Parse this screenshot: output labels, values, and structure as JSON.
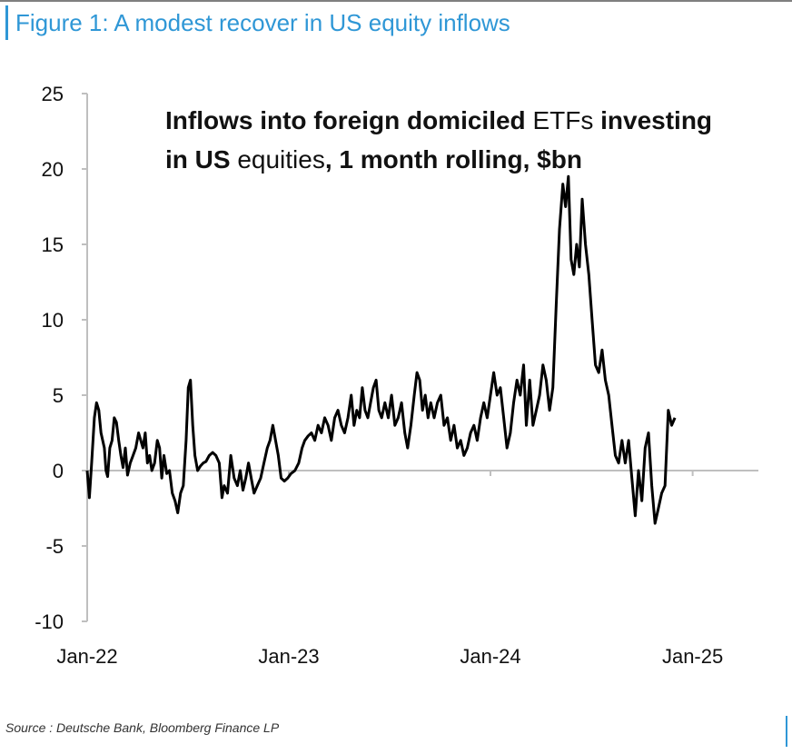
{
  "figure": {
    "title": "Figure 1: A modest recover in US equity inflows",
    "source": "Source : Deutsche Bank, Bloomberg Finance LP",
    "accent_color": "#2f97d6"
  },
  "chart_data": {
    "type": "line",
    "title": "",
    "annotation": {
      "line1": [
        {
          "text": "Inflows into foreign domiciled ",
          "bold": true
        },
        {
          "text": "ETFs",
          "bold": false
        },
        {
          "text": " investing",
          "bold": true
        }
      ],
      "line2": [
        {
          "text": "in US ",
          "bold": true
        },
        {
          "text": "equities",
          "bold": false
        },
        {
          "text": ",  1 month rolling, $bn",
          "bold": true
        }
      ]
    },
    "xlabel": "",
    "ylabel": "",
    "x_range": [
      "2022-01-01",
      "2025-04-15"
    ],
    "x_ticks": [
      {
        "date": "2022-01-01",
        "label": "Jan-22"
      },
      {
        "date": "2023-01-01",
        "label": "Jan-23"
      },
      {
        "date": "2024-01-01",
        "label": "Jan-24"
      },
      {
        "date": "2025-01-01",
        "label": "Jan-25"
      }
    ],
    "ylim": [
      -10,
      25
    ],
    "y_ticks": [
      25,
      20,
      15,
      10,
      5,
      0,
      -5,
      -10
    ],
    "grid": false,
    "legend": "none",
    "series": [
      {
        "name": "",
        "color": "#000000",
        "points": [
          [
            "2022-01-01",
            0.0
          ],
          [
            "2022-01-05",
            -1.8
          ],
          [
            "2022-01-09",
            0.5
          ],
          [
            "2022-01-14",
            3.5
          ],
          [
            "2022-01-18",
            4.5
          ],
          [
            "2022-01-22",
            4.0
          ],
          [
            "2022-01-26",
            2.5
          ],
          [
            "2022-02-01",
            1.5
          ],
          [
            "2022-02-04",
            0.0
          ],
          [
            "2022-02-07",
            -0.4
          ],
          [
            "2022-02-11",
            1.5
          ],
          [
            "2022-02-15",
            2.0
          ],
          [
            "2022-02-19",
            3.5
          ],
          [
            "2022-02-23",
            3.2
          ],
          [
            "2022-02-27",
            2.0
          ],
          [
            "2022-03-03",
            1.0
          ],
          [
            "2022-03-07",
            0.2
          ],
          [
            "2022-03-11",
            1.5
          ],
          [
            "2022-03-15",
            -0.3
          ],
          [
            "2022-03-20",
            0.5
          ],
          [
            "2022-03-25",
            1.0
          ],
          [
            "2022-03-30",
            1.5
          ],
          [
            "2022-04-04",
            2.5
          ],
          [
            "2022-04-08",
            2.0
          ],
          [
            "2022-04-12",
            1.5
          ],
          [
            "2022-04-16",
            2.5
          ],
          [
            "2022-04-20",
            0.5
          ],
          [
            "2022-04-24",
            1.0
          ],
          [
            "2022-04-28",
            0.0
          ],
          [
            "2022-05-03",
            0.5
          ],
          [
            "2022-05-08",
            2.0
          ],
          [
            "2022-05-12",
            1.5
          ],
          [
            "2022-05-16",
            -0.5
          ],
          [
            "2022-05-20",
            1.0
          ],
          [
            "2022-05-25",
            -0.2
          ],
          [
            "2022-05-30",
            0.0
          ],
          [
            "2022-06-04",
            -1.5
          ],
          [
            "2022-06-09",
            -2.0
          ],
          [
            "2022-06-14",
            -2.8
          ],
          [
            "2022-06-19",
            -1.5
          ],
          [
            "2022-06-24",
            -1.0
          ],
          [
            "2022-06-29",
            2.0
          ],
          [
            "2022-07-03",
            5.5
          ],
          [
            "2022-07-07",
            6.0
          ],
          [
            "2022-07-11",
            3.0
          ],
          [
            "2022-07-15",
            1.0
          ],
          [
            "2022-07-20",
            0.0
          ],
          [
            "2022-07-25",
            0.3
          ],
          [
            "2022-07-30",
            0.5
          ],
          [
            "2022-08-04",
            0.6
          ],
          [
            "2022-08-10",
            1.0
          ],
          [
            "2022-08-16",
            1.2
          ],
          [
            "2022-08-22",
            1.0
          ],
          [
            "2022-08-28",
            0.5
          ],
          [
            "2022-09-02",
            -1.8
          ],
          [
            "2022-09-06",
            -1.0
          ],
          [
            "2022-09-12",
            -1.5
          ],
          [
            "2022-09-18",
            1.0
          ],
          [
            "2022-09-24",
            -0.5
          ],
          [
            "2022-09-30",
            -1.0
          ],
          [
            "2022-10-05",
            0.0
          ],
          [
            "2022-10-10",
            -1.3
          ],
          [
            "2022-10-15",
            -0.5
          ],
          [
            "2022-10-20",
            0.5
          ],
          [
            "2022-10-25",
            -0.5
          ],
          [
            "2022-10-30",
            -1.5
          ],
          [
            "2022-11-05",
            -1.0
          ],
          [
            "2022-11-11",
            -0.5
          ],
          [
            "2022-11-17",
            0.5
          ],
          [
            "2022-11-23",
            1.5
          ],
          [
            "2022-11-28",
            2.0
          ],
          [
            "2022-12-03",
            3.0
          ],
          [
            "2022-12-08",
            2.0
          ],
          [
            "2022-12-13",
            1.0
          ],
          [
            "2022-12-18",
            -0.5
          ],
          [
            "2022-12-24",
            -0.7
          ],
          [
            "2022-12-30",
            -0.5
          ],
          [
            "2023-01-05",
            -0.2
          ],
          [
            "2023-01-12",
            0.0
          ],
          [
            "2023-01-19",
            0.5
          ],
          [
            "2023-01-25",
            1.5
          ],
          [
            "2023-01-30",
            2.0
          ],
          [
            "2023-02-05",
            2.3
          ],
          [
            "2023-02-11",
            2.5
          ],
          [
            "2023-02-17",
            2.0
          ],
          [
            "2023-02-23",
            3.0
          ],
          [
            "2023-03-01",
            2.5
          ],
          [
            "2023-03-07",
            3.5
          ],
          [
            "2023-03-13",
            3.0
          ],
          [
            "2023-03-19",
            2.0
          ],
          [
            "2023-03-25",
            3.5
          ],
          [
            "2023-03-31",
            4.0
          ],
          [
            "2023-04-06",
            3.0
          ],
          [
            "2023-04-12",
            2.5
          ],
          [
            "2023-04-18",
            3.5
          ],
          [
            "2023-04-24",
            5.0
          ],
          [
            "2023-04-29",
            3.0
          ],
          [
            "2023-05-04",
            4.0
          ],
          [
            "2023-05-09",
            3.5
          ],
          [
            "2023-05-14",
            5.5
          ],
          [
            "2023-05-19",
            4.0
          ],
          [
            "2023-05-24",
            3.5
          ],
          [
            "2023-05-29",
            4.5
          ],
          [
            "2023-06-03",
            5.5
          ],
          [
            "2023-06-08",
            6.0
          ],
          [
            "2023-06-13",
            4.0
          ],
          [
            "2023-06-18",
            3.5
          ],
          [
            "2023-06-24",
            4.5
          ],
          [
            "2023-06-30",
            3.5
          ],
          [
            "2023-07-06",
            5.0
          ],
          [
            "2023-07-12",
            3.0
          ],
          [
            "2023-07-18",
            3.5
          ],
          [
            "2023-07-24",
            4.5
          ],
          [
            "2023-07-30",
            2.5
          ],
          [
            "2023-08-04",
            1.5
          ],
          [
            "2023-08-10",
            3.0
          ],
          [
            "2023-08-16",
            5.0
          ],
          [
            "2023-08-21",
            6.5
          ],
          [
            "2023-08-26",
            6.0
          ],
          [
            "2023-08-31",
            4.0
          ],
          [
            "2023-09-05",
            5.0
          ],
          [
            "2023-09-10",
            3.5
          ],
          [
            "2023-09-15",
            4.5
          ],
          [
            "2023-09-21",
            3.5
          ],
          [
            "2023-09-27",
            4.5
          ],
          [
            "2023-10-03",
            5.0
          ],
          [
            "2023-10-09",
            3.0
          ],
          [
            "2023-10-15",
            3.5
          ],
          [
            "2023-10-21",
            2.0
          ],
          [
            "2023-10-27",
            3.0
          ],
          [
            "2023-11-02",
            1.5
          ],
          [
            "2023-11-08",
            2.0
          ],
          [
            "2023-11-14",
            1.0
          ],
          [
            "2023-11-20",
            1.5
          ],
          [
            "2023-11-26",
            2.5
          ],
          [
            "2023-12-02",
            3.0
          ],
          [
            "2023-12-08",
            2.0
          ],
          [
            "2023-12-14",
            3.5
          ],
          [
            "2023-12-20",
            4.5
          ],
          [
            "2023-12-26",
            3.5
          ],
          [
            "2024-01-01",
            5.0
          ],
          [
            "2024-01-07",
            6.5
          ],
          [
            "2024-01-13",
            5.0
          ],
          [
            "2024-01-19",
            5.5
          ],
          [
            "2024-01-25",
            3.5
          ],
          [
            "2024-01-31",
            1.5
          ],
          [
            "2024-02-06",
            2.5
          ],
          [
            "2024-02-12",
            4.5
          ],
          [
            "2024-02-18",
            6.0
          ],
          [
            "2024-02-24",
            5.0
          ],
          [
            "2024-03-01",
            7.0
          ],
          [
            "2024-03-06",
            3.0
          ],
          [
            "2024-03-12",
            6.0
          ],
          [
            "2024-03-18",
            3.0
          ],
          [
            "2024-03-24",
            4.0
          ],
          [
            "2024-03-30",
            5.0
          ],
          [
            "2024-04-05",
            7.0
          ],
          [
            "2024-04-11",
            6.0
          ],
          [
            "2024-04-17",
            4.0
          ],
          [
            "2024-04-23",
            5.5
          ],
          [
            "2024-04-29",
            11.0
          ],
          [
            "2024-05-05",
            16.0
          ],
          [
            "2024-05-11",
            19.0
          ],
          [
            "2024-05-16",
            17.5
          ],
          [
            "2024-05-21",
            19.5
          ],
          [
            "2024-05-26",
            14.0
          ],
          [
            "2024-05-31",
            13.0
          ],
          [
            "2024-06-05",
            15.0
          ],
          [
            "2024-06-10",
            13.5
          ],
          [
            "2024-06-15",
            18.0
          ],
          [
            "2024-06-21",
            15.0
          ],
          [
            "2024-06-27",
            13.0
          ],
          [
            "2024-07-03",
            10.0
          ],
          [
            "2024-07-09",
            7.0
          ],
          [
            "2024-07-15",
            6.5
          ],
          [
            "2024-07-21",
            8.0
          ],
          [
            "2024-07-27",
            6.0
          ],
          [
            "2024-08-02",
            5.0
          ],
          [
            "2024-08-08",
            3.0
          ],
          [
            "2024-08-14",
            1.0
          ],
          [
            "2024-08-20",
            0.5
          ],
          [
            "2024-08-26",
            2.0
          ],
          [
            "2024-09-01",
            0.5
          ],
          [
            "2024-09-07",
            2.0
          ],
          [
            "2024-09-13",
            -0.5
          ],
          [
            "2024-09-19",
            -3.0
          ],
          [
            "2024-09-25",
            0.0
          ],
          [
            "2024-10-01",
            -2.0
          ],
          [
            "2024-10-07",
            1.5
          ],
          [
            "2024-10-13",
            2.5
          ],
          [
            "2024-10-19",
            -1.0
          ],
          [
            "2024-10-25",
            -3.5
          ],
          [
            "2024-10-31",
            -2.5
          ],
          [
            "2024-11-06",
            -1.5
          ],
          [
            "2024-11-12",
            -1.0
          ],
          [
            "2024-11-18",
            4.0
          ],
          [
            "2024-11-24",
            3.0
          ],
          [
            "2024-11-30",
            3.5
          ]
        ]
      }
    ]
  }
}
